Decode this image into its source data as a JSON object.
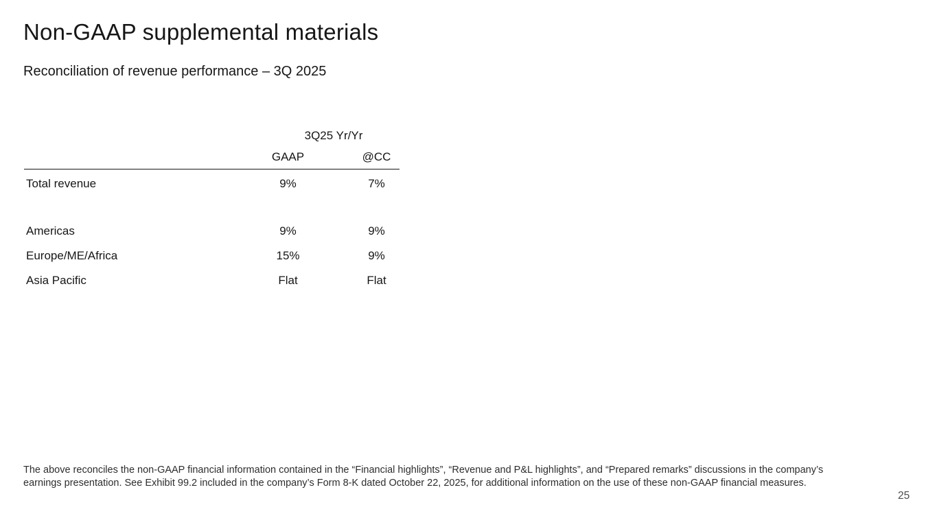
{
  "slide": {
    "title": "Non-GAAP supplemental materials",
    "subtitle": "Reconciliation of revenue performance – 3Q 2025",
    "footnote": "The above reconciles the non-GAAP financial information contained in the “Financial highlights”, “Revenue and P&L highlights”, and “Prepared remarks” discussions in the company’s earnings presentation. See Exhibit 99.2 included in the company’s Form 8-K dated October 22, 2025, for additional information on the use of these non-GAAP financial measures.",
    "page_number": "25"
  },
  "table": {
    "group_header": "3Q25 Yr/Yr",
    "columns": {
      "gaap": "GAAP",
      "cc": "@CC"
    },
    "rows": [
      {
        "label": "Total revenue",
        "gaap": "9%",
        "cc": "7%"
      },
      {
        "label": "Americas",
        "gaap": "9%",
        "cc": "9%"
      },
      {
        "label": "Europe/ME/Africa",
        "gaap": "15%",
        "cc": "9%"
      },
      {
        "label": "Asia Pacific",
        "gaap": "Flat",
        "cc": "Flat"
      }
    ]
  },
  "colors": {
    "background": "#ffffff",
    "text": "#161616",
    "footnote_text": "#2d2d2d",
    "page_number_text": "#4d4d4d",
    "table_rule": "#161616"
  }
}
